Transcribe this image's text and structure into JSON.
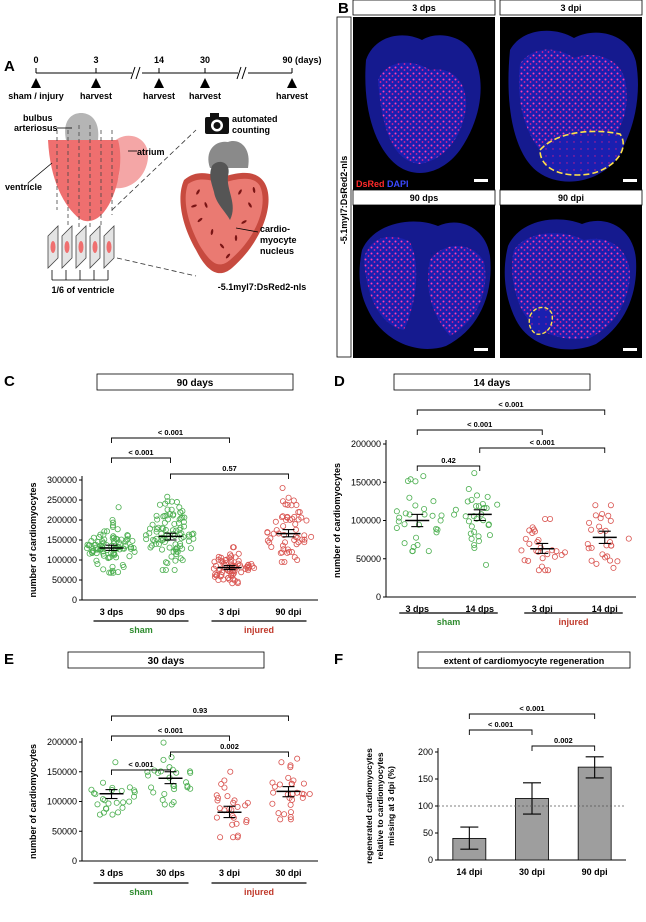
{
  "panels": {
    "A": {
      "letter": "A",
      "timeline": {
        "ticks": [
          {
            "day": "0",
            "event": "sham / injury"
          },
          {
            "day": "3",
            "event": "harvest"
          },
          {
            "day": "14",
            "event": "harvest"
          },
          {
            "day": "30",
            "event": "harvest"
          },
          {
            "day": "90 (days)",
            "event": "harvest"
          }
        ]
      },
      "labels": {
        "bulbus": [
          "bulbus",
          "arteriosus"
        ],
        "atrium": "atrium",
        "ventricle": "ventricle",
        "sixth": "1/6 of ventricle",
        "counting": [
          "automated",
          "counting"
        ],
        "nucleus": [
          "cardio-",
          "myocyte",
          "nucleus"
        ],
        "transgene": "-5.1myl7:DsRed2-nls"
      }
    },
    "B": {
      "letter": "B",
      "side_label": "-5.1myl7:DsRed2-nls",
      "stain_red": "DsRed",
      "stain_blue": "DAPI",
      "images": [
        "3 dps",
        "3 dpi",
        "90 dps",
        "90 dpi"
      ]
    },
    "C": {
      "letter": "C",
      "title": "90 days"
    },
    "D": {
      "letter": "D",
      "title": "14 days"
    },
    "E": {
      "letter": "E",
      "title": "30 days"
    },
    "F": {
      "letter": "F",
      "title": "extent of cardiomyocyte regeneration"
    }
  },
  "chart_data": [
    {
      "panel": "C",
      "type": "scatter",
      "title": "90 days",
      "ylabel": "number of cardiomyocytes",
      "ylim": [
        0,
        300000
      ],
      "yticks": [
        "0",
        "50000",
        "100000",
        "150000",
        "200000",
        "250000",
        "300000"
      ],
      "categories": [
        "3 dps",
        "90 dps",
        "3 dpi",
        "90 dpi"
      ],
      "groups": [
        {
          "name": "sham",
          "color": "#2e8b2e"
        },
        {
          "name": "injured",
          "color": "#c0392b"
        }
      ],
      "series": [
        {
          "name": "3 dps",
          "n": 95,
          "mean": 130000,
          "ci": [
            124000,
            137000
          ],
          "sd": 30000,
          "range": [
            68000,
            232000
          ],
          "color": "#4caf50"
        },
        {
          "name": "90 dps",
          "n": 95,
          "mean": 159000,
          "ci": [
            150000,
            167000
          ],
          "sd": 42000,
          "range": [
            75000,
            258000
          ],
          "color": "#4caf50"
        },
        {
          "name": "3 dpi",
          "n": 72,
          "mean": 81000,
          "ci": [
            76000,
            86000
          ],
          "sd": 18000,
          "range": [
            42000,
            132000
          ],
          "color": "#d9534f"
        },
        {
          "name": "90 dpi",
          "n": 58,
          "mean": 166000,
          "ci": [
            158000,
            176000
          ],
          "sd": 36000,
          "range": [
            95000,
            280000
          ],
          "color": "#d9534f"
        }
      ],
      "comparisons": [
        {
          "from": "3 dps",
          "to": "3 dpi",
          "p": "< 0.001"
        },
        {
          "from": "3 dps",
          "to": "90 dps",
          "p": "< 0.001"
        },
        {
          "from": "90 dps",
          "to": "90 dpi",
          "p": "0.57"
        },
        {
          "from": "3 dpi",
          "to": "90 dpi",
          "p": "< 0.001"
        }
      ]
    },
    {
      "panel": "D",
      "type": "scatter",
      "title": "14 days",
      "ylabel": "number of cardiomyocytes",
      "ylim": [
        0,
        200000
      ],
      "yticks": [
        "0",
        "50000",
        "100000",
        "150000",
        "200000"
      ],
      "categories": [
        "3 dps",
        "14 dps",
        "3 dpi",
        "14 dpi"
      ],
      "groups": [
        {
          "name": "sham",
          "color": "#2e8b2e"
        },
        {
          "name": "injured",
          "color": "#c0392b"
        }
      ],
      "series": [
        {
          "name": "3 dps",
          "n": 30,
          "mean": 100000,
          "ci": [
            92000,
            108000
          ],
          "sd": 25000,
          "range": [
            60000,
            158000
          ],
          "color": "#4caf50"
        },
        {
          "name": "14 dps",
          "n": 32,
          "mean": 108000,
          "ci": [
            100000,
            114000
          ],
          "sd": 24000,
          "range": [
            42000,
            162000
          ],
          "color": "#4caf50"
        },
        {
          "name": "3 dpi",
          "n": 28,
          "mean": 63000,
          "ci": [
            57000,
            70000
          ],
          "sd": 17000,
          "range": [
            35000,
            102000
          ],
          "color": "#d9534f"
        },
        {
          "name": "14 dpi",
          "n": 28,
          "mean": 78000,
          "ci": [
            70000,
            86000
          ],
          "sd": 21000,
          "range": [
            38000,
            120000
          ],
          "color": "#d9534f"
        }
      ],
      "comparisons": [
        {
          "from": "3 dps",
          "to": "14 dpi",
          "p": "< 0.001"
        },
        {
          "from": "3 dps",
          "to": "3 dpi",
          "p": "< 0.001"
        },
        {
          "from": "14 dps",
          "to": "14 dpi",
          "p": "< 0.001"
        },
        {
          "from": "3 dps",
          "to": "14 dps",
          "p": "0.42"
        },
        {
          "from": "3 dpi",
          "to": "14 dpi",
          "p": "0.05"
        }
      ]
    },
    {
      "panel": "E",
      "type": "scatter",
      "title": "30 days",
      "ylabel": "number of cardiomyocytes",
      "ylim": [
        0,
        200000
      ],
      "yticks": [
        "0",
        "50000",
        "100000",
        "150000",
        "200000"
      ],
      "categories": [
        "3 dps",
        "30 dps",
        "3 dpi",
        "30 dpi"
      ],
      "groups": [
        {
          "name": "sham",
          "color": "#2e8b2e"
        },
        {
          "name": "injured",
          "color": "#c0392b"
        }
      ],
      "series": [
        {
          "name": "3 dps",
          "n": 26,
          "mean": 113000,
          "ci": [
            105000,
            120000
          ],
          "sd": 22000,
          "range": [
            78000,
            166000
          ],
          "color": "#4caf50"
        },
        {
          "name": "30 dps",
          "n": 28,
          "mean": 139000,
          "ci": [
            130000,
            150000
          ],
          "sd": 26000,
          "range": [
            95000,
            199000
          ],
          "color": "#4caf50"
        },
        {
          "name": "3 dpi",
          "n": 28,
          "mean": 82000,
          "ci": [
            73000,
            92000
          ],
          "sd": 24000,
          "range": [
            40000,
            150000
          ],
          "color": "#d9534f"
        },
        {
          "name": "30 dpi",
          "n": 30,
          "mean": 117000,
          "ci": [
            108000,
            125000
          ],
          "sd": 24000,
          "range": [
            70000,
            172000
          ],
          "color": "#d9534f"
        }
      ],
      "comparisons": [
        {
          "from": "3 dps",
          "to": "30 dpi",
          "p": "0.93"
        },
        {
          "from": "3 dps",
          "to": "3 dpi",
          "p": "< 0.001"
        },
        {
          "from": "30 dps",
          "to": "30 dpi",
          "p": "0.002"
        },
        {
          "from": "3 dps",
          "to": "30 dps",
          "p": "< 0.001"
        },
        {
          "from": "3 dpi",
          "to": "30 dpi",
          "p": "< 0.001"
        }
      ]
    },
    {
      "panel": "F",
      "type": "bar",
      "title": "extent of cardiomyocyte regeneration",
      "ylabel": [
        "regenerated cardiomyocytes",
        "relative to cardiomyocytes",
        "missing at 3 dpi (%)"
      ],
      "ylim": [
        0,
        200
      ],
      "yticks": [
        "0",
        "50",
        "100",
        "150",
        "200"
      ],
      "reference_line": 100,
      "categories": [
        "14 dpi",
        "30 dpi",
        "90 dpi"
      ],
      "values": [
        40,
        114,
        172
      ],
      "errors": [
        [
          20,
          61
        ],
        [
          85,
          143
        ],
        [
          152,
          191
        ]
      ],
      "bar_color": "#9e9e9e",
      "comparisons": [
        {
          "from": "14 dpi",
          "to": "90 dpi",
          "p": "< 0.001"
        },
        {
          "from": "14 dpi",
          "to": "30 dpi",
          "p": "< 0.001"
        },
        {
          "from": "30 dpi",
          "to": "90 dpi",
          "p": "0.002"
        }
      ]
    }
  ]
}
